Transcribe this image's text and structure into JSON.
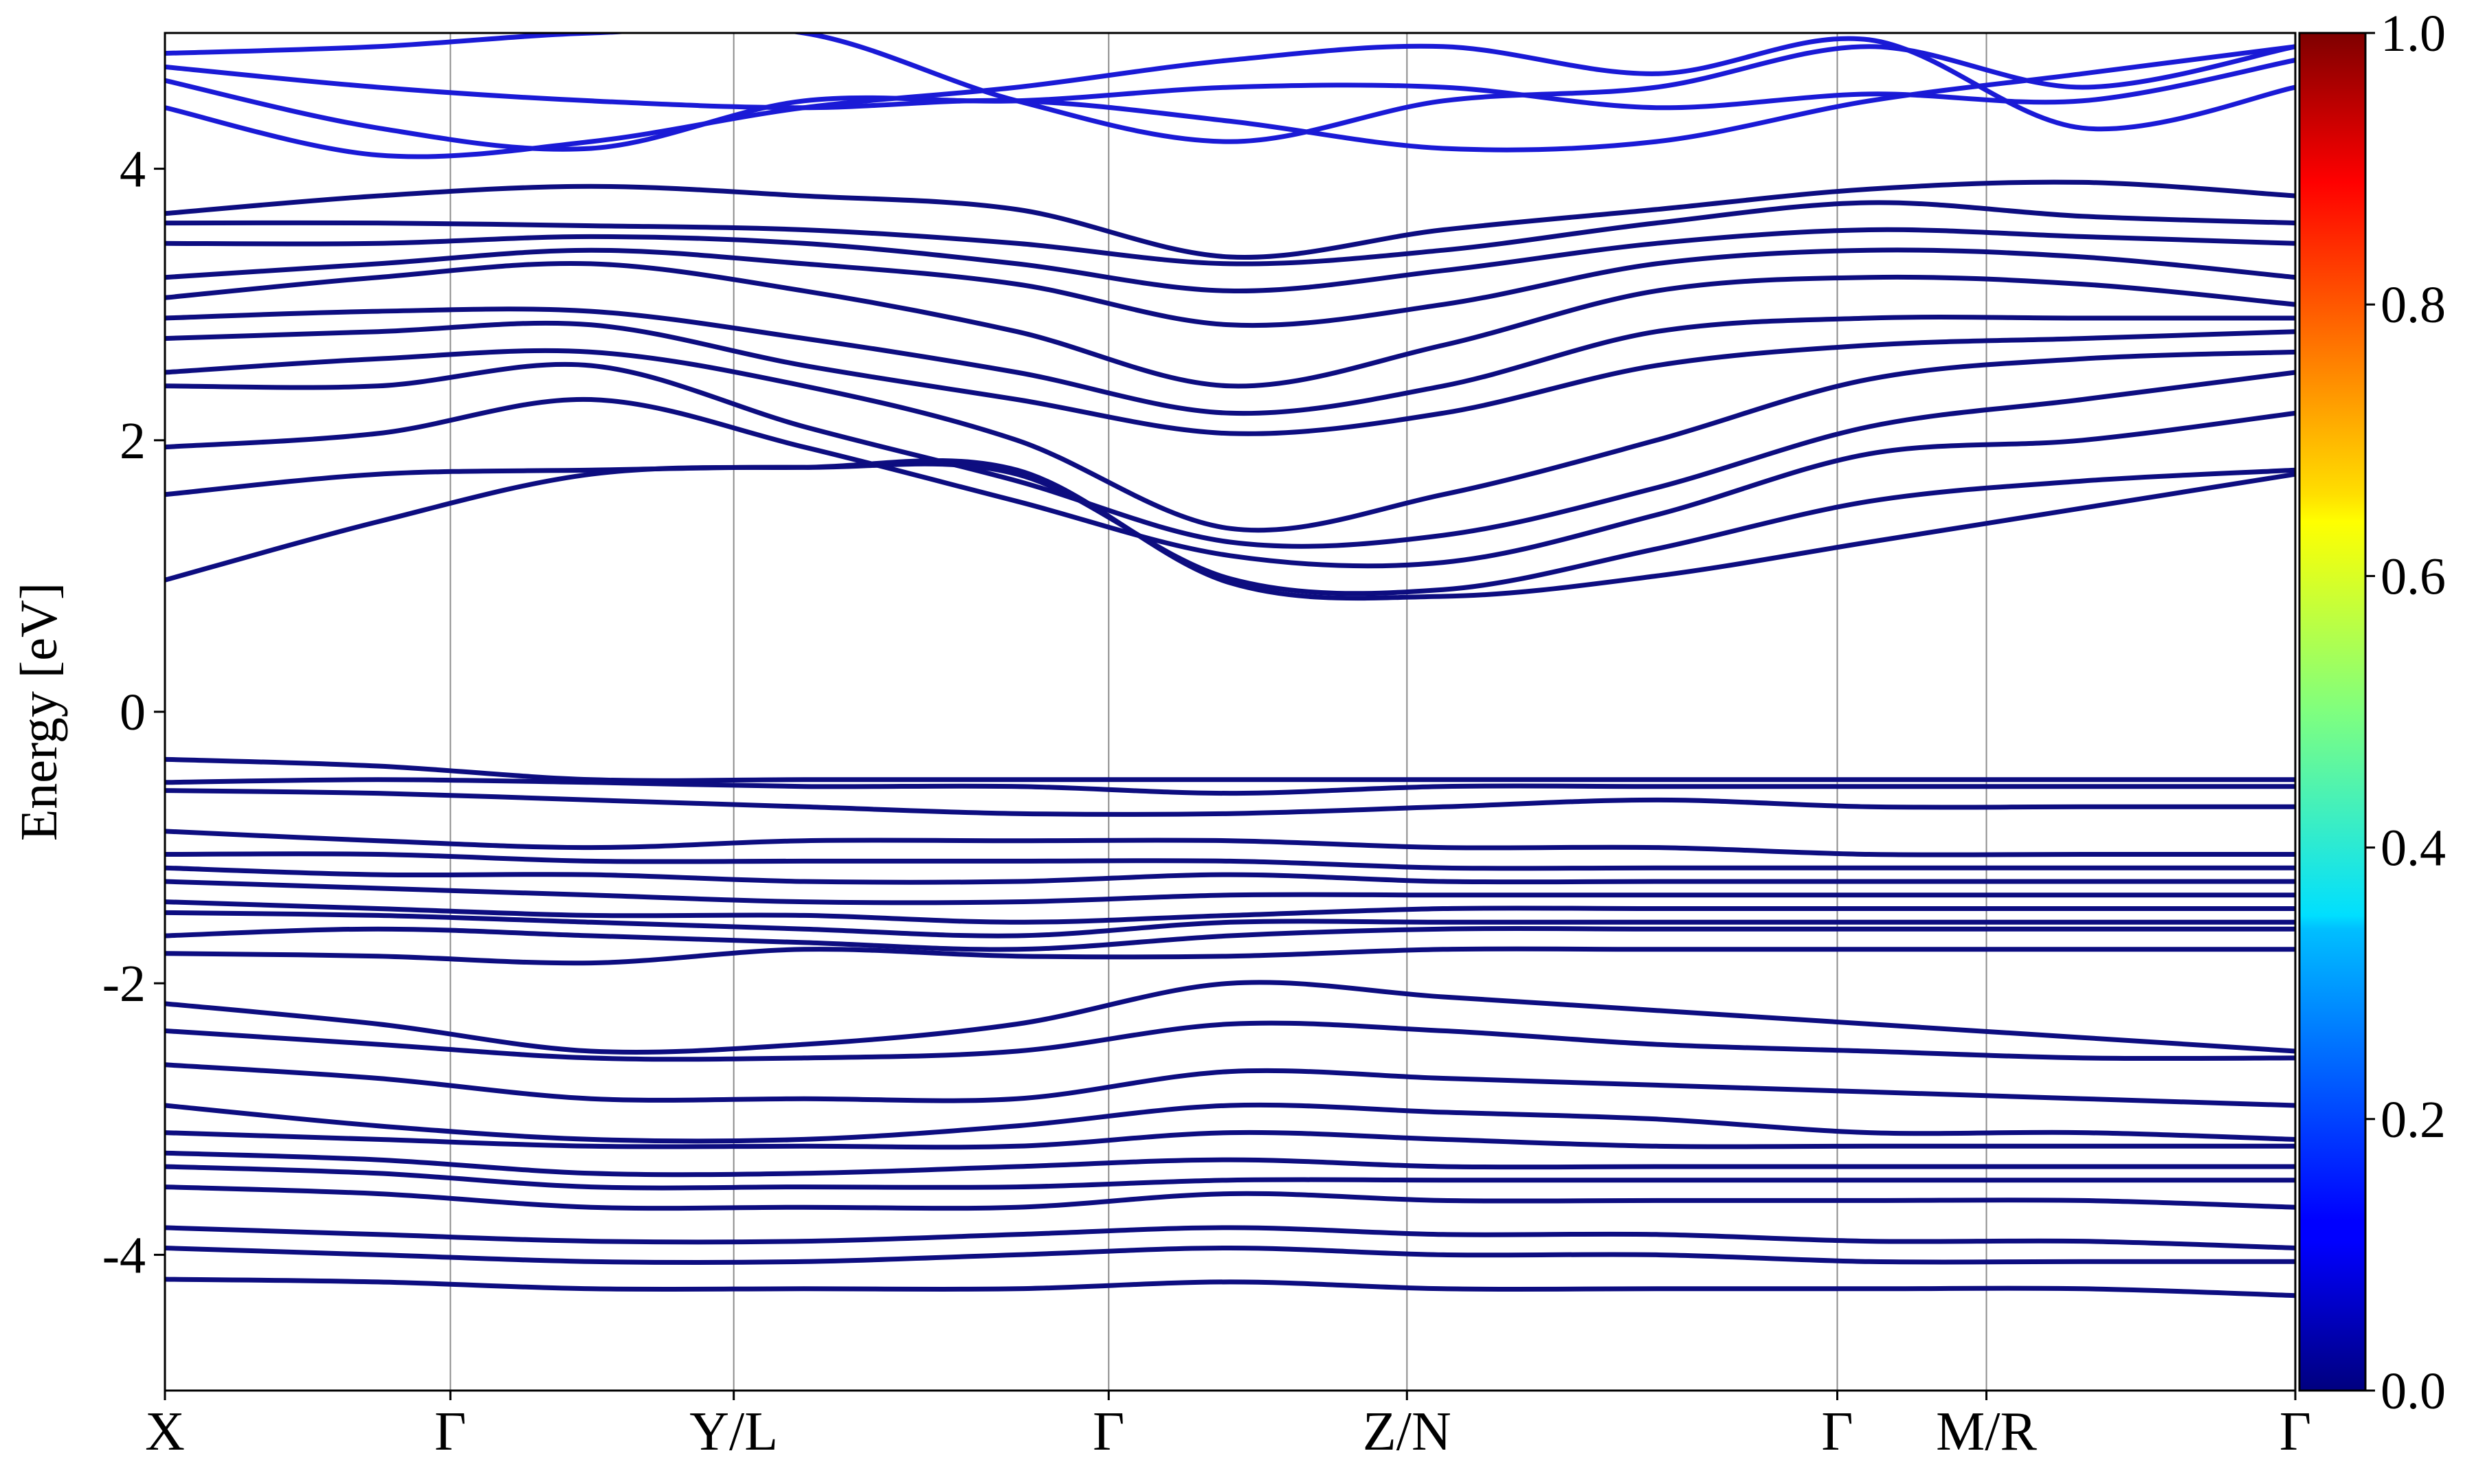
{
  "chart_data": {
    "type": "line",
    "title": "",
    "xlabel": "",
    "ylabel": "Energy [eV]",
    "ylim": [
      -5,
      5
    ],
    "yticks": [
      {
        "value": 4,
        "label": "4"
      },
      {
        "value": 2,
        "label": "2"
      },
      {
        "value": 0,
        "label": "0"
      },
      {
        "value": -2,
        "label": "-2"
      },
      {
        "value": -4,
        "label": "-4"
      }
    ],
    "k_path": [
      {
        "position": 0.0,
        "label": "X"
      },
      {
        "position": 0.134,
        "label": "Γ"
      },
      {
        "position": 0.267,
        "label": "Y/L"
      },
      {
        "position": 0.443,
        "label": "Γ"
      },
      {
        "position": 0.583,
        "label": "Z/N"
      },
      {
        "position": 0.785,
        "label": "Γ"
      },
      {
        "position": 0.855,
        "label": "M/R"
      },
      {
        "position": 1.0,
        "label": "Γ"
      }
    ],
    "colorbar": {
      "ticks": [
        "0.0",
        "0.2",
        "0.4",
        "0.6",
        "0.8",
        "1.0"
      ],
      "colormap": "jet",
      "range": [
        0.0,
        1.0
      ]
    },
    "line_colors": {
      "band": "#0d0d80",
      "high_band": "#1a1ad6"
    },
    "grid": false,
    "bands": [
      {
        "group": "high",
        "e": [
          4.85,
          4.9,
          5.0,
          5.0,
          4.5,
          4.2,
          4.5,
          4.6,
          4.9,
          4.6,
          4.9
        ]
      },
      {
        "group": "high",
        "e": [
          4.75,
          4.6,
          4.5,
          4.45,
          4.5,
          4.35,
          4.15,
          4.2,
          4.5,
          4.7,
          4.9
        ]
      },
      {
        "group": "high",
        "e": [
          4.65,
          4.3,
          4.15,
          4.5,
          4.5,
          4.6,
          4.6,
          4.45,
          4.55,
          4.5,
          4.8
        ]
      },
      {
        "group": "high",
        "e": [
          4.45,
          4.1,
          4.2,
          4.45,
          4.6,
          4.8,
          4.9,
          4.7,
          4.95,
          4.3,
          4.6
        ]
      },
      {
        "group": "cond",
        "e": [
          3.67,
          3.8,
          3.87,
          3.8,
          3.7,
          3.35,
          3.55,
          3.7,
          3.85,
          3.9,
          3.8
        ]
      },
      {
        "group": "cond",
        "e": [
          3.6,
          3.6,
          3.58,
          3.55,
          3.45,
          3.3,
          3.4,
          3.6,
          3.75,
          3.65,
          3.6
        ]
      },
      {
        "group": "cond",
        "e": [
          3.45,
          3.45,
          3.5,
          3.45,
          3.3,
          3.1,
          3.25,
          3.45,
          3.55,
          3.5,
          3.45
        ]
      },
      {
        "group": "cond",
        "e": [
          3.2,
          3.3,
          3.4,
          3.3,
          3.15,
          2.85,
          3.0,
          3.3,
          3.4,
          3.35,
          3.2
        ]
      },
      {
        "group": "cond",
        "e": [
          3.05,
          3.2,
          3.3,
          3.1,
          2.8,
          2.4,
          2.7,
          3.1,
          3.2,
          3.15,
          3.0
        ]
      },
      {
        "group": "cond",
        "e": [
          2.9,
          2.95,
          2.95,
          2.75,
          2.5,
          2.2,
          2.4,
          2.8,
          2.9,
          2.9,
          2.9
        ]
      },
      {
        "group": "cond",
        "e": [
          2.75,
          2.8,
          2.85,
          2.55,
          2.3,
          2.05,
          2.2,
          2.55,
          2.7,
          2.75,
          2.8
        ]
      },
      {
        "group": "cond",
        "e": [
          2.5,
          2.6,
          2.65,
          2.4,
          2.0,
          1.35,
          1.6,
          2.0,
          2.45,
          2.6,
          2.65
        ]
      },
      {
        "group": "cond",
        "e": [
          2.4,
          2.4,
          2.55,
          2.1,
          1.7,
          1.25,
          1.3,
          1.65,
          2.1,
          2.3,
          2.5
        ]
      },
      {
        "group": "cond",
        "e": [
          1.95,
          2.05,
          2.3,
          1.95,
          1.55,
          1.15,
          1.1,
          1.45,
          1.9,
          2.0,
          2.2
        ]
      },
      {
        "group": "cond",
        "e": [
          1.6,
          1.75,
          1.78,
          1.8,
          1.75,
          0.98,
          0.9,
          1.2,
          1.55,
          1.7,
          1.78
        ]
      },
      {
        "group": "cond",
        "e": [
          0.97,
          1.4,
          1.75,
          1.8,
          1.78,
          0.95,
          0.85,
          1.0,
          1.25,
          1.5,
          1.75
        ]
      },
      {
        "group": "val",
        "e": [
          -0.35,
          -0.4,
          -0.5,
          -0.5,
          -0.5,
          -0.5,
          -0.5,
          -0.5,
          -0.5,
          -0.5,
          -0.5
        ]
      },
      {
        "group": "val",
        "e": [
          -0.52,
          -0.5,
          -0.52,
          -0.55,
          -0.55,
          -0.6,
          -0.55,
          -0.55,
          -0.55,
          -0.55,
          -0.55
        ]
      },
      {
        "group": "val",
        "e": [
          -0.58,
          -0.6,
          -0.65,
          -0.7,
          -0.75,
          -0.75,
          -0.7,
          -0.65,
          -0.7,
          -0.7,
          -0.7
        ]
      },
      {
        "group": "val",
        "e": [
          -0.88,
          -0.95,
          -1.0,
          -0.95,
          -0.95,
          -0.95,
          -1.0,
          -1.0,
          -1.05,
          -1.05,
          -1.05
        ]
      },
      {
        "group": "val",
        "e": [
          -1.05,
          -1.05,
          -1.1,
          -1.1,
          -1.1,
          -1.1,
          -1.15,
          -1.15,
          -1.15,
          -1.15,
          -1.15
        ]
      },
      {
        "group": "val",
        "e": [
          -1.15,
          -1.2,
          -1.2,
          -1.25,
          -1.25,
          -1.2,
          -1.25,
          -1.25,
          -1.25,
          -1.25,
          -1.25
        ]
      },
      {
        "group": "val",
        "e": [
          -1.25,
          -1.3,
          -1.35,
          -1.4,
          -1.4,
          -1.35,
          -1.35,
          -1.35,
          -1.35,
          -1.35,
          -1.35
        ]
      },
      {
        "group": "val",
        "e": [
          -1.4,
          -1.45,
          -1.5,
          -1.5,
          -1.55,
          -1.5,
          -1.45,
          -1.45,
          -1.45,
          -1.45,
          -1.45
        ]
      },
      {
        "group": "val",
        "e": [
          -1.48,
          -1.5,
          -1.55,
          -1.6,
          -1.65,
          -1.55,
          -1.55,
          -1.55,
          -1.55,
          -1.55,
          -1.55
        ]
      },
      {
        "group": "val",
        "e": [
          -1.65,
          -1.6,
          -1.65,
          -1.7,
          -1.75,
          -1.65,
          -1.6,
          -1.6,
          -1.6,
          -1.6,
          -1.6
        ]
      },
      {
        "group": "val",
        "e": [
          -1.78,
          -1.8,
          -1.85,
          -1.75,
          -1.8,
          -1.8,
          -1.75,
          -1.75,
          -1.75,
          -1.75,
          -1.75
        ]
      },
      {
        "group": "val",
        "e": [
          -2.15,
          -2.3,
          -2.5,
          -2.45,
          -2.3,
          -2.0,
          -2.1,
          -2.2,
          -2.3,
          -2.4,
          -2.5
        ]
      },
      {
        "group": "val",
        "e": [
          -2.35,
          -2.45,
          -2.55,
          -2.55,
          -2.5,
          -2.3,
          -2.35,
          -2.45,
          -2.5,
          -2.55,
          -2.55
        ]
      },
      {
        "group": "val",
        "e": [
          -2.6,
          -2.7,
          -2.85,
          -2.85,
          -2.85,
          -2.65,
          -2.7,
          -2.75,
          -2.8,
          -2.85,
          -2.9
        ]
      },
      {
        "group": "val",
        "e": [
          -2.9,
          -3.05,
          -3.15,
          -3.15,
          -3.05,
          -2.9,
          -2.95,
          -3.0,
          -3.1,
          -3.1,
          -3.15
        ]
      },
      {
        "group": "val",
        "e": [
          -3.1,
          -3.15,
          -3.2,
          -3.2,
          -3.2,
          -3.1,
          -3.15,
          -3.2,
          -3.2,
          -3.2,
          -3.2
        ]
      },
      {
        "group": "val",
        "e": [
          -3.25,
          -3.3,
          -3.4,
          -3.4,
          -3.35,
          -3.3,
          -3.35,
          -3.35,
          -3.35,
          -3.35,
          -3.35
        ]
      },
      {
        "group": "val",
        "e": [
          -3.35,
          -3.4,
          -3.5,
          -3.5,
          -3.5,
          -3.45,
          -3.45,
          -3.45,
          -3.45,
          -3.45,
          -3.45
        ]
      },
      {
        "group": "val",
        "e": [
          -3.5,
          -3.55,
          -3.65,
          -3.65,
          -3.65,
          -3.55,
          -3.6,
          -3.6,
          -3.6,
          -3.6,
          -3.65
        ]
      },
      {
        "group": "val",
        "e": [
          -3.8,
          -3.85,
          -3.9,
          -3.9,
          -3.85,
          -3.8,
          -3.85,
          -3.85,
          -3.9,
          -3.9,
          -3.95
        ]
      },
      {
        "group": "val",
        "e": [
          -3.95,
          -4.0,
          -4.05,
          -4.05,
          -4.0,
          -3.95,
          -4.0,
          -4.0,
          -4.05,
          -4.05,
          -4.05
        ]
      },
      {
        "group": "val",
        "e": [
          -4.18,
          -4.2,
          -4.25,
          -4.25,
          -4.25,
          -4.2,
          -4.25,
          -4.25,
          -4.25,
          -4.25,
          -4.3
        ]
      }
    ]
  }
}
